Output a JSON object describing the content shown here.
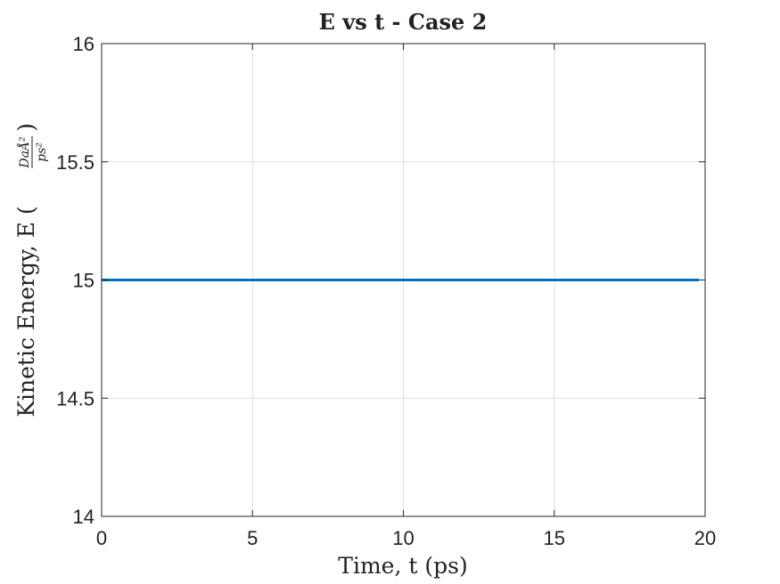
{
  "chart_data": {
    "type": "line",
    "title": "E vs t - Case 2",
    "xlabel": "Time, t (ps)",
    "ylabel": {
      "prefix": "Kinetic Energy, E (",
      "numerator": "DaÅ²",
      "denominator": "ps²",
      "suffix": ")"
    },
    "xlim": [
      0,
      20
    ],
    "ylim": [
      14,
      16
    ],
    "xticks": [
      0,
      5,
      10,
      15,
      20
    ],
    "xtick_labels": [
      "0",
      "5",
      "10",
      "15",
      "20"
    ],
    "yticks": [
      14,
      14.5,
      15,
      15.5,
      16
    ],
    "ytick_labels": [
      "14",
      "14.5",
      "15",
      "15.5",
      "16"
    ],
    "grid": true,
    "legend": "none",
    "series": [
      {
        "color": "#0072bd",
        "x": [
          0,
          19.8
        ],
        "y": [
          15,
          15
        ]
      }
    ]
  }
}
